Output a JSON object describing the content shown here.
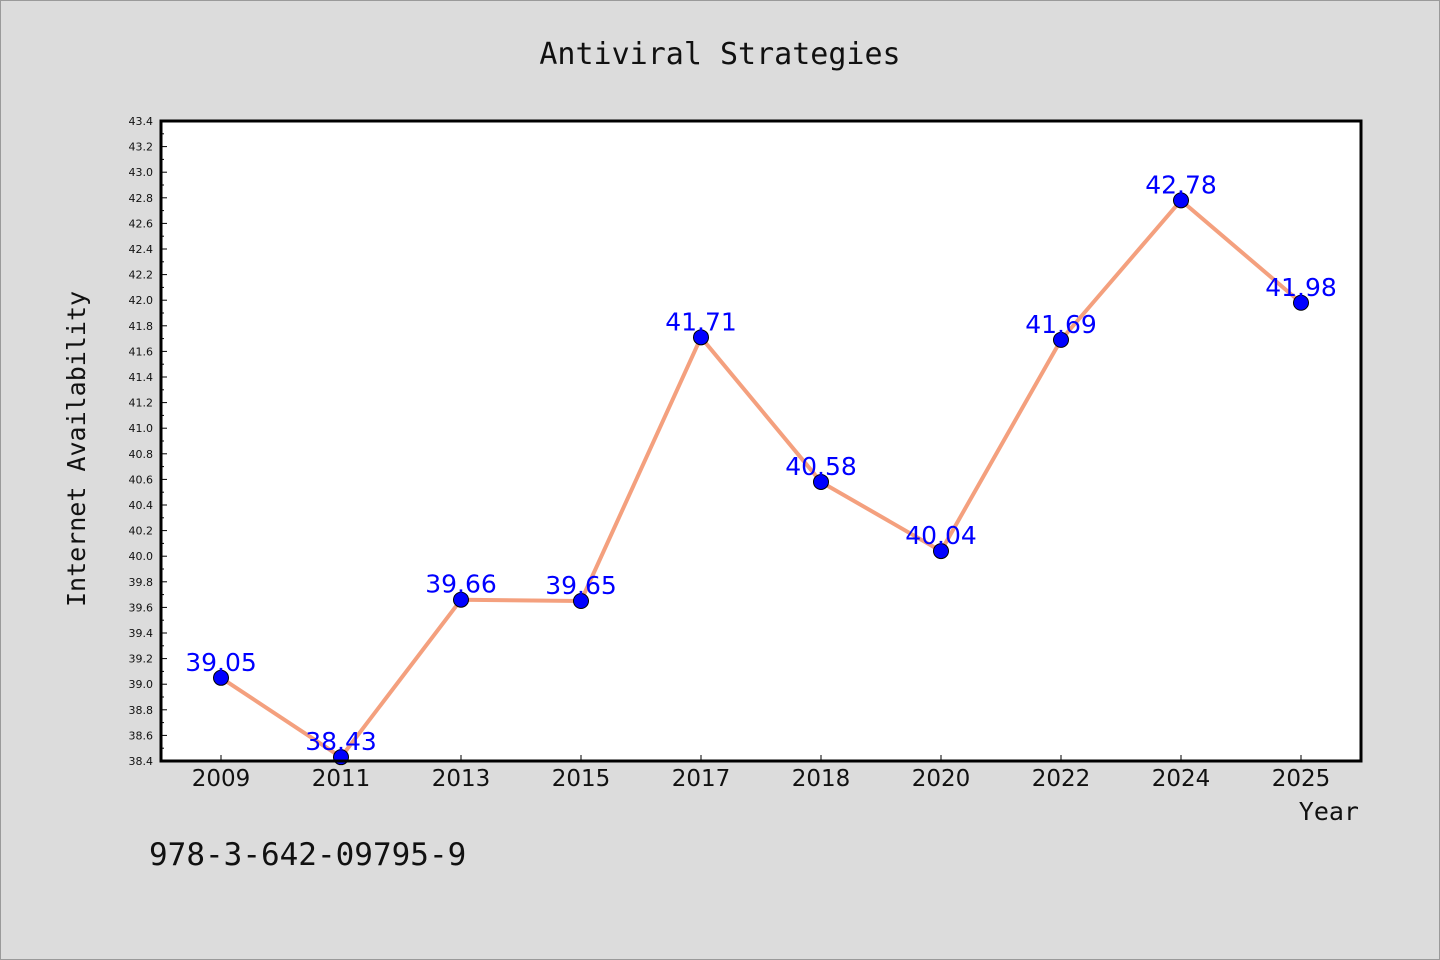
{
  "footer_text": "978-3-642-09795-9",
  "colors": {
    "background": "#dcdcdc",
    "plot_background": "#ffffff",
    "line": "#f4a07e",
    "marker": "#0000ff",
    "data_label": "#0000ff"
  },
  "chart_data": {
    "type": "line",
    "title": "Antiviral Strategies",
    "xlabel": "Year",
    "ylabel": "Internet Availability",
    "categories": [
      "2009",
      "2011",
      "2013",
      "2015",
      "2017",
      "2018",
      "2020",
      "2022",
      "2024",
      "2025"
    ],
    "series": [
      {
        "values": [
          39.05,
          38.43,
          39.66,
          39.65,
          41.71,
          40.58,
          40.04,
          41.69,
          42.78,
          41.98
        ],
        "labels": [
          "39.05",
          "38.43",
          "39.66",
          "39.65",
          "41.71",
          "40.58",
          "40.04",
          "41.69",
          "42.78",
          "41.98"
        ]
      }
    ],
    "ylim": [
      38.4,
      43.4
    ],
    "ytick_step": 0.2,
    "ytick_labels": [
      "38.4",
      "38.6",
      "38.8",
      "39.0",
      "39.2",
      "39.4",
      "39.6",
      "39.8",
      "40.0",
      "40.2",
      "40.4",
      "40.6",
      "40.8",
      "41.0",
      "41.2",
      "41.4",
      "41.6",
      "41.8",
      "42.0",
      "42.2",
      "42.4",
      "42.6",
      "42.8",
      "43.0",
      "43.2",
      "43.4"
    ],
    "grid": false,
    "legend": "none",
    "markers": true,
    "data_labels": true
  }
}
